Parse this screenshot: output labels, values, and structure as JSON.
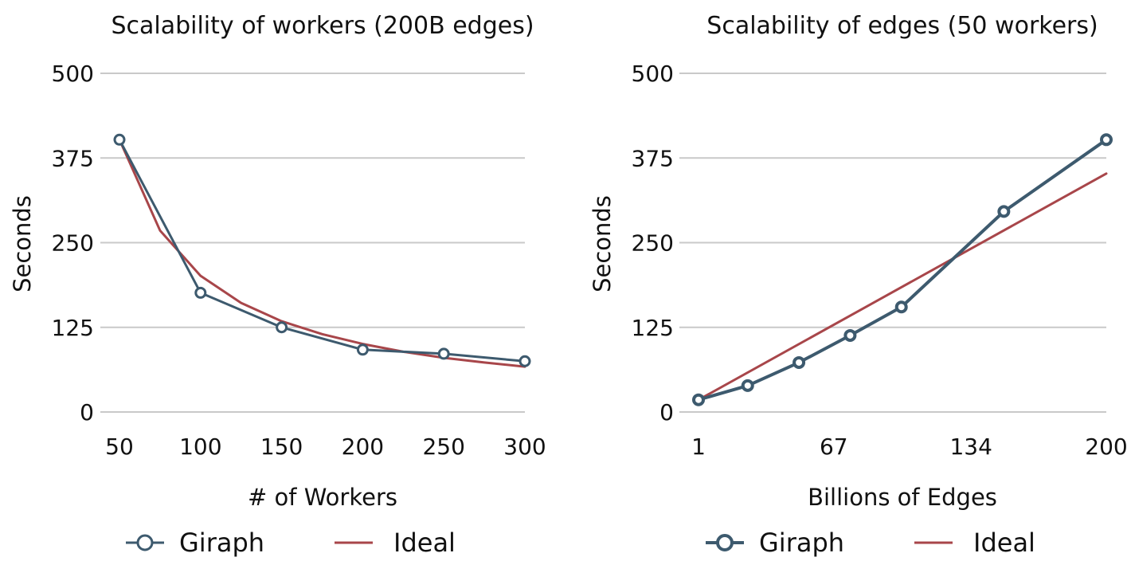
{
  "chart_data": [
    {
      "type": "line",
      "title": "Scalability of workers (200B edges)",
      "xlabel": "# of Workers",
      "ylabel": "Seconds",
      "xlim": [
        50,
        300
      ],
      "ylim": [
        0,
        500
      ],
      "x_ticks": [
        "50",
        "100",
        "150",
        "200",
        "250",
        "300"
      ],
      "y_ticks": [
        "0",
        "125",
        "250",
        "375",
        "500"
      ],
      "grid": true,
      "legend": "bottom",
      "series": [
        {
          "name": "Giraph",
          "color": "#3d5a6e",
          "marker": "circle",
          "x": [
            50,
            100,
            150,
            200,
            250,
            300
          ],
          "y": [
            402,
            176,
            125,
            92,
            86,
            75
          ]
        },
        {
          "name": "Ideal",
          "color": "#a8464a",
          "marker": "none",
          "x": [
            50,
            75,
            100,
            125,
            150,
            175,
            200,
            225,
            250,
            275,
            300
          ],
          "y": [
            402,
            268,
            201,
            161,
            134,
            115,
            100.5,
            89,
            80,
            73,
            67
          ]
        }
      ]
    },
    {
      "type": "line",
      "title": "Scalability of edges (50 workers)",
      "xlabel": "Billions of Edges",
      "ylabel": "Seconds",
      "xlim": [
        1,
        200
      ],
      "ylim": [
        0,
        500
      ],
      "x_ticks": [
        "1",
        "67",
        "134",
        "200"
      ],
      "y_ticks": [
        "0",
        "125",
        "250",
        "375",
        "500"
      ],
      "grid": true,
      "legend": "bottom",
      "series": [
        {
          "name": "Giraph",
          "color": "#3d5a6e",
          "marker": "circle",
          "x": [
            1,
            25,
            50,
            75,
            100,
            150,
            200
          ],
          "y": [
            18,
            39,
            73,
            113,
            155,
            296,
            402
          ]
        },
        {
          "name": "Ideal",
          "color": "#a8464a",
          "marker": "none",
          "x": [
            1,
            200
          ],
          "y": [
            18,
            352
          ]
        }
      ]
    }
  ]
}
